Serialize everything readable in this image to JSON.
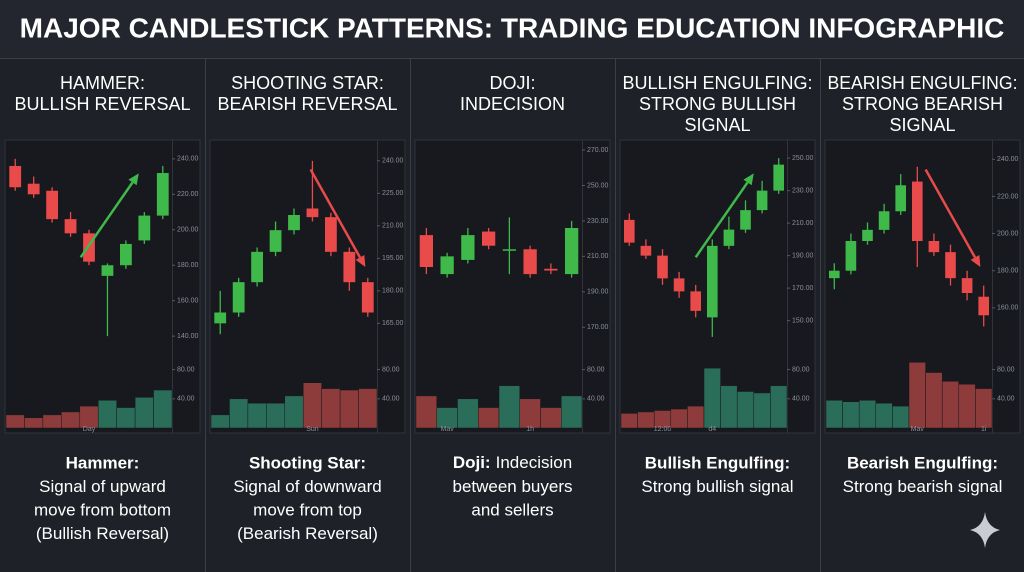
{
  "title": "MAJOR CANDLESTICK PATTERNS: TRADING EDUCATION INFOGRAPHIC",
  "colors": {
    "up": "#3fb94a",
    "down": "#e94a4a",
    "volume_up": "#2a6e5a",
    "volume_down": "#8e3b3b"
  },
  "chart_data": [
    {
      "type": "candlestick",
      "title": [
        "HAMMER:",
        "BULLISH REVERSAL"
      ],
      "trend": "up",
      "caption": {
        "label": "Hammer:",
        "lines": [
          "Signal of upward",
          "move from bottom",
          "(Bullish Reversal)"
        ]
      },
      "categories": [
        null,
        null,
        null,
        null,
        "Day",
        null,
        null,
        null,
        null
      ],
      "open": [
        236,
        226,
        222,
        206,
        198,
        174,
        180,
        194,
        208
      ],
      "high": [
        240,
        230,
        224,
        210,
        200,
        181,
        194,
        210,
        236
      ],
      "low": [
        222,
        218,
        204,
        196,
        180,
        140,
        178,
        192,
        206
      ],
      "close": [
        224,
        220,
        206,
        198,
        182,
        180,
        192,
        208,
        232
      ],
      "volume": [
        18,
        14,
        18,
        22,
        30,
        38,
        28,
        42,
        52
      ],
      "ylim": [
        135,
        245
      ],
      "yticks": [
        {
          "value": 240,
          "label": "240.00"
        },
        {
          "value": 220,
          "label": "220.00"
        },
        {
          "value": 200,
          "label": "200.00"
        },
        {
          "value": 180,
          "label": "180.00"
        },
        {
          "value": 160,
          "label": "160.00"
        },
        {
          "value": 140,
          "label": "140.00"
        }
      ],
      "vlim": [
        0,
        100
      ],
      "vticks": [
        {
          "value": 80,
          "label": "80.00"
        },
        {
          "value": 40,
          "label": "40.00"
        }
      ]
    },
    {
      "type": "candlestick",
      "title": [
        "SHOOTING STAR:",
        "BEARISH REVERSAL"
      ],
      "trend": "down",
      "caption": {
        "label": "Shooting Star:",
        "lines": [
          "Signal of downward",
          "move from top",
          "(Bearish Reversal)"
        ]
      },
      "categories": [
        null,
        null,
        null,
        null,
        null,
        "Sun",
        null,
        null,
        null
      ],
      "open": [
        165,
        170,
        184,
        198,
        208,
        218,
        214,
        198,
        184
      ],
      "high": [
        180,
        186,
        200,
        212,
        218,
        240,
        216,
        200,
        186
      ],
      "low": [
        160,
        168,
        182,
        196,
        206,
        212,
        196,
        180,
        168
      ],
      "close": [
        170,
        184,
        198,
        208,
        215,
        214,
        198,
        184,
        170
      ],
      "volume": [
        18,
        40,
        34,
        34,
        44,
        62,
        54,
        52,
        54
      ],
      "ylim": [
        155,
        245
      ],
      "yticks": [
        {
          "value": 240,
          "label": "240.00"
        },
        {
          "value": 225,
          "label": "225.00"
        },
        {
          "value": 210,
          "label": "210.00"
        },
        {
          "value": 195,
          "label": "195.00"
        },
        {
          "value": 180,
          "label": "180.00"
        },
        {
          "value": 165,
          "label": "165.00"
        }
      ],
      "vlim": [
        0,
        100
      ],
      "vticks": [
        {
          "value": 80,
          "label": "80.00"
        },
        {
          "value": 40,
          "label": "40.00"
        }
      ]
    },
    {
      "type": "candlestick",
      "title": [
        "DOJI:",
        "INDECISION"
      ],
      "caption": {
        "label": "Doji:",
        "inline": true,
        "lines": [
          "Indecision",
          "between buyers",
          "and sellers"
        ]
      },
      "categories": [
        null,
        "Mav",
        null,
        null,
        null,
        "1h",
        null,
        null
      ],
      "open": [
        222,
        200,
        208,
        224,
        214,
        214,
        203,
        200
      ],
      "high": [
        226,
        212,
        226,
        226,
        232,
        216,
        206,
        230
      ],
      "low": [
        200,
        198,
        206,
        214,
        200,
        198,
        200,
        198
      ],
      "close": [
        204,
        210,
        222,
        216,
        214,
        200,
        202,
        226
      ],
      "volume": [
        44,
        28,
        40,
        28,
        58,
        40,
        28,
        44
      ],
      "ylim": [
        160,
        270
      ],
      "yticks": [
        {
          "value": 270,
          "label": "270.00"
        },
        {
          "value": 250,
          "label": "250.00"
        },
        {
          "value": 230,
          "label": "230.00"
        },
        {
          "value": 210,
          "label": "210.00"
        },
        {
          "value": 190,
          "label": "190.00"
        },
        {
          "value": 170,
          "label": "170.00"
        }
      ],
      "vlim": [
        0,
        100
      ],
      "vticks": [
        {
          "value": 80,
          "label": "80.00"
        },
        {
          "value": 40,
          "label": "40.00"
        }
      ]
    },
    {
      "type": "candlestick",
      "title": [
        "BULLISH ENGULFING:",
        "STRONG BULLISH",
        "SIGNAL"
      ],
      "trend": "up",
      "caption": {
        "label": "Bullish Engulfing:",
        "lines": [
          "Strong bullish signal"
        ]
      },
      "categories": [
        null,
        null,
        "12:00",
        null,
        null,
        "d4",
        null,
        null,
        null,
        null
      ],
      "open": [
        212,
        196,
        190,
        176,
        168,
        152,
        196,
        206,
        218,
        230
      ],
      "high": [
        216,
        200,
        194,
        180,
        172,
        200,
        214,
        224,
        236,
        250
      ],
      "low": [
        196,
        188,
        172,
        164,
        152,
        140,
        194,
        204,
        216,
        228
      ],
      "close": [
        198,
        190,
        176,
        168,
        156,
        196,
        206,
        218,
        230,
        246
      ],
      "volume": [
        20,
        22,
        24,
        26,
        30,
        82,
        58,
        50,
        48,
        58
      ],
      "ylim": [
        135,
        255
      ],
      "yticks": [
        {
          "value": 250,
          "label": "250.00"
        },
        {
          "value": 230,
          "label": "230.00"
        },
        {
          "value": 210,
          "label": "210.00"
        },
        {
          "value": 190,
          "label": "190.00"
        },
        {
          "value": 170,
          "label": "170.00"
        },
        {
          "value": 150,
          "label": "150.00"
        }
      ],
      "vlim": [
        0,
        100
      ],
      "vticks": [
        {
          "value": 80,
          "label": "80.00"
        },
        {
          "value": 40,
          "label": "40.00"
        }
      ]
    },
    {
      "type": "candlestick",
      "title": [
        "BEARISH ENGULFING:",
        "STRONG BEARISH",
        "SIGNAL"
      ],
      "trend": "down",
      "caption": {
        "label": "Bearish Engulfing:",
        "lines": [
          "Strong bearish signal"
        ]
      },
      "categories": [
        null,
        null,
        null,
        null,
        null,
        "Mav",
        null,
        null,
        null,
        "1i"
      ],
      "open": [
        176,
        180,
        196,
        202,
        212,
        228,
        196,
        190,
        176,
        166
      ],
      "high": [
        184,
        200,
        206,
        216,
        232,
        236,
        200,
        194,
        180,
        172
      ],
      "low": [
        170,
        178,
        194,
        200,
        210,
        182,
        188,
        172,
        164,
        150
      ],
      "close": [
        180,
        196,
        202,
        212,
        226,
        196,
        190,
        176,
        168,
        156
      ],
      "volume": [
        38,
        36,
        38,
        34,
        30,
        90,
        76,
        64,
        60,
        54
      ],
      "ylim": [
        140,
        245
      ],
      "yticks": [
        {
          "value": 240,
          "label": "240.00"
        },
        {
          "value": 220,
          "label": "220.00"
        },
        {
          "value": 200,
          "label": "200.00"
        },
        {
          "value": 180,
          "label": "180.00"
        },
        {
          "value": 160,
          "label": "160.00"
        }
      ],
      "vlim": [
        0,
        100
      ],
      "vticks": [
        {
          "value": 80,
          "label": "80.00"
        },
        {
          "value": 40,
          "label": "40.00"
        }
      ]
    }
  ]
}
